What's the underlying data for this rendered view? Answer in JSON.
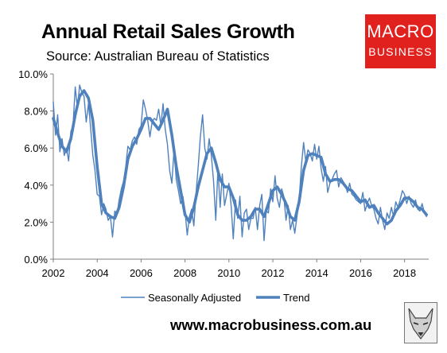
{
  "title": "Annual Retail Sales Growth",
  "subtitle": "Source: Australian Bureau of Statistics",
  "logo": {
    "line1": "MACRO",
    "line2": "BUSINESS",
    "color": "#e0211d"
  },
  "footer": {
    "url": "www.macrobusiness.com.au"
  },
  "icons": {
    "footer_logo": "fox-icon"
  },
  "colors": {
    "series": "#4f81bd"
  },
  "chart_data": {
    "type": "line",
    "x_range": [
      2002,
      2019.1
    ],
    "ylim": [
      0,
      10
    ],
    "x_ticks": [
      "2002",
      "2004",
      "2006",
      "2008",
      "2010",
      "2012",
      "2014",
      "2016",
      "2018"
    ],
    "y_ticks": [
      "0.0%",
      "2.0%",
      "4.0%",
      "6.0%",
      "8.0%",
      "10.0%"
    ],
    "grid": false,
    "legend": "bottom",
    "series": [
      {
        "name": "Seasonally Adjusted",
        "style": "thin",
        "x": [
          2002.0,
          2002.1,
          2002.2,
          2002.3,
          2002.4,
          2002.5,
          2002.6,
          2002.7,
          2002.8,
          2002.9,
          2003.0,
          2003.1,
          2003.2,
          2003.3,
          2003.4,
          2003.5,
          2003.6,
          2003.7,
          2003.8,
          2003.9,
          2004.0,
          2004.1,
          2004.2,
          2004.3,
          2004.4,
          2004.5,
          2004.6,
          2004.7,
          2004.8,
          2004.9,
          2005.0,
          2005.1,
          2005.2,
          2005.3,
          2005.4,
          2005.5,
          2005.6,
          2005.7,
          2005.8,
          2005.9,
          2006.0,
          2006.1,
          2006.2,
          2006.3,
          2006.4,
          2006.5,
          2006.6,
          2006.7,
          2006.8,
          2006.9,
          2007.0,
          2007.1,
          2007.2,
          2007.3,
          2007.4,
          2007.5,
          2007.6,
          2007.7,
          2007.8,
          2007.9,
          2008.0,
          2008.1,
          2008.2,
          2008.3,
          2008.4,
          2008.5,
          2008.6,
          2008.7,
          2008.8,
          2008.9,
          2009.0,
          2009.1,
          2009.2,
          2009.3,
          2009.4,
          2009.5,
          2009.6,
          2009.7,
          2009.8,
          2009.9,
          2010.0,
          2010.1,
          2010.2,
          2010.3,
          2010.4,
          2010.5,
          2010.6,
          2010.7,
          2010.8,
          2010.9,
          2011.0,
          2011.1,
          2011.2,
          2011.3,
          2011.4,
          2011.5,
          2011.6,
          2011.7,
          2011.8,
          2011.9,
          2012.0,
          2012.1,
          2012.2,
          2012.3,
          2012.4,
          2012.5,
          2012.6,
          2012.7,
          2012.8,
          2012.9,
          2013.0,
          2013.1,
          2013.2,
          2013.3,
          2013.4,
          2013.5,
          2013.6,
          2013.7,
          2013.8,
          2013.9,
          2014.0,
          2014.1,
          2014.2,
          2014.3,
          2014.4,
          2014.5,
          2014.6,
          2014.7,
          2014.8,
          2014.9,
          2015.0,
          2015.1,
          2015.2,
          2015.3,
          2015.4,
          2015.5,
          2015.6,
          2015.7,
          2015.8,
          2015.9,
          2016.0,
          2016.1,
          2016.2,
          2016.3,
          2016.4,
          2016.5,
          2016.6,
          2016.7,
          2016.8,
          2016.9,
          2017.0,
          2017.1,
          2017.2,
          2017.3,
          2017.4,
          2017.5,
          2017.6,
          2017.7,
          2017.8,
          2017.9,
          2018.0,
          2018.1,
          2018.2,
          2018.3,
          2018.4,
          2018.5,
          2018.6,
          2018.7,
          2018.8,
          2018.9,
          2019.0
        ],
        "values": [
          8.5,
          6.7,
          7.8,
          5.8,
          6.5,
          5.6,
          6.0,
          5.3,
          6.9,
          7.2,
          9.3,
          8.1,
          9.4,
          9.0,
          8.8,
          7.4,
          8.4,
          7.1,
          5.6,
          4.8,
          3.5,
          3.4,
          2.4,
          3.0,
          2.7,
          2.1,
          2.3,
          1.2,
          2.6,
          2.4,
          3.2,
          3.8,
          4.2,
          5.0,
          6.1,
          5.9,
          6.4,
          6.6,
          6.2,
          7.0,
          7.2,
          8.6,
          8.1,
          7.5,
          6.6,
          7.4,
          7.6,
          7.5,
          8.1,
          7.2,
          8.4,
          7.0,
          6.2,
          4.8,
          4.1,
          5.9,
          4.3,
          3.7,
          3.0,
          3.4,
          2.6,
          1.3,
          2.3,
          2.7,
          1.8,
          3.5,
          5.0,
          6.6,
          7.8,
          6.0,
          5.4,
          6.5,
          5.6,
          4.2,
          2.1,
          4.9,
          2.8,
          4.6,
          2.9,
          3.5,
          4.1,
          2.9,
          1.1,
          3.2,
          2.2,
          3.4,
          1.2,
          2.5,
          2.7,
          1.6,
          2.2,
          2.2,
          2.8,
          1.6,
          2.9,
          3.5,
          1.0,
          2.6,
          2.5,
          3.8,
          3.1,
          4.5,
          3.3,
          2.8,
          3.8,
          3.4,
          2.1,
          2.9,
          1.6,
          2.1,
          1.4,
          2.3,
          3.2,
          5.0,
          6.3,
          5.3,
          5.9,
          5.7,
          5.3,
          6.2,
          5.4,
          6.1,
          4.9,
          4.2,
          5.0,
          3.6,
          4.1,
          4.3,
          4.6,
          4.8,
          3.9,
          4.4,
          4.2,
          4.0,
          3.6,
          4.1,
          3.5,
          3.4,
          3.2,
          3.1,
          3.0,
          3.6,
          2.6,
          3.0,
          3.3,
          2.9,
          2.7,
          2.2,
          1.9,
          2.8,
          2.1,
          1.6,
          2.5,
          2.2,
          2.8,
          2.3,
          3.1,
          2.8,
          3.2,
          3.7,
          3.5,
          3.0,
          3.4,
          3.0,
          2.8,
          3.2,
          2.7,
          2.6,
          3.0,
          2.5,
          2.3
        ]
      },
      {
        "name": "Trend",
        "style": "thick",
        "x": [
          2002.0,
          2002.2,
          2002.4,
          2002.6,
          2002.8,
          2003.0,
          2003.2,
          2003.4,
          2003.6,
          2003.8,
          2004.0,
          2004.2,
          2004.4,
          2004.6,
          2004.8,
          2005.0,
          2005.2,
          2005.4,
          2005.6,
          2005.8,
          2006.0,
          2006.2,
          2006.4,
          2006.6,
          2006.8,
          2007.0,
          2007.2,
          2007.4,
          2007.6,
          2007.8,
          2008.0,
          2008.2,
          2008.4,
          2008.6,
          2008.8,
          2009.0,
          2009.2,
          2009.4,
          2009.6,
          2009.8,
          2010.0,
          2010.2,
          2010.4,
          2010.6,
          2010.8,
          2011.0,
          2011.2,
          2011.4,
          2011.6,
          2011.8,
          2012.0,
          2012.2,
          2012.4,
          2012.6,
          2012.8,
          2013.0,
          2013.2,
          2013.4,
          2013.6,
          2013.8,
          2014.0,
          2014.2,
          2014.4,
          2014.6,
          2014.8,
          2015.0,
          2015.2,
          2015.4,
          2015.6,
          2015.8,
          2016.0,
          2016.2,
          2016.4,
          2016.6,
          2016.8,
          2017.0,
          2017.2,
          2017.4,
          2017.6,
          2017.8,
          2018.0,
          2018.2,
          2018.4,
          2018.6,
          2018.8,
          2019.0
        ],
        "values": [
          7.6,
          6.8,
          6.1,
          5.8,
          6.5,
          7.8,
          8.8,
          9.1,
          8.7,
          7.5,
          5.0,
          3.0,
          2.5,
          2.3,
          2.2,
          2.8,
          3.9,
          5.4,
          6.1,
          6.5,
          7.0,
          7.6,
          7.6,
          7.3,
          7.0,
          7.5,
          8.1,
          6.7,
          5.0,
          3.7,
          2.4,
          2.0,
          2.8,
          3.9,
          4.8,
          5.7,
          6.0,
          5.2,
          4.3,
          3.9,
          3.9,
          3.3,
          2.4,
          2.1,
          2.1,
          2.3,
          2.7,
          2.7,
          2.3,
          3.0,
          3.7,
          3.9,
          3.5,
          3.0,
          2.3,
          2.1,
          3.1,
          4.8,
          5.6,
          5.7,
          5.6,
          5.5,
          4.6,
          4.2,
          4.3,
          4.3,
          4.1,
          3.8,
          3.7,
          3.4,
          3.1,
          3.2,
          2.8,
          2.9,
          2.5,
          2.2,
          1.9,
          2.1,
          2.6,
          2.9,
          3.3,
          3.3,
          3.1,
          2.8,
          2.7,
          2.4
        ]
      }
    ]
  }
}
